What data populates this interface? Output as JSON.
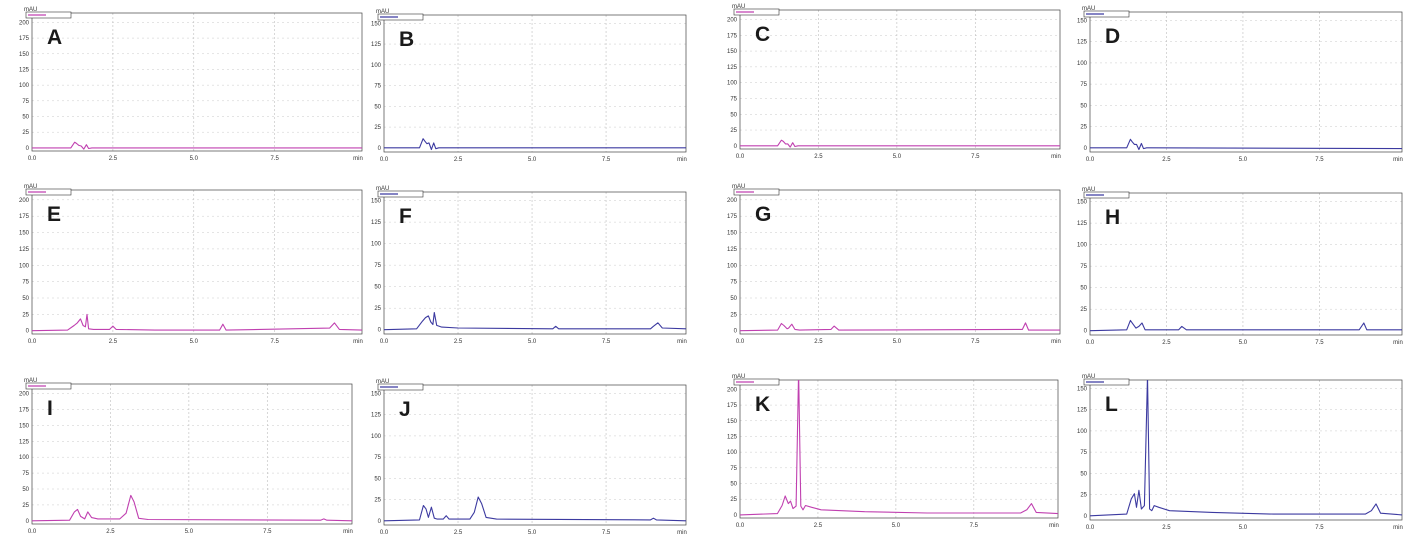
{
  "figure": {
    "background": "#ffffff",
    "grid_color": "#bdbdbd",
    "axis_color": "#444444"
  },
  "colors": {
    "magenta": "#c040b0",
    "blue": "#3c3aa0"
  },
  "chart_data": [
    {
      "id": "A",
      "type": "line",
      "color": "#c040b0",
      "ylabel": "mAU",
      "xlabel": "min",
      "xlim": [
        0,
        10.2
      ],
      "ylim": [
        -5,
        215
      ],
      "y_ticks": [
        0,
        25,
        50,
        75,
        100,
        125,
        150,
        175,
        200
      ],
      "x_ticks": [
        "2.5",
        "5.0",
        "7.5"
      ],
      "grid": true,
      "x": [
        0,
        1.2,
        1.32,
        1.38,
        1.45,
        1.52,
        1.6,
        1.68,
        1.75,
        1.85,
        2.0,
        10.2
      ],
      "y": [
        0,
        0,
        9,
        7,
        4,
        3,
        -2,
        5,
        -1,
        0,
        0,
        0
      ]
    },
    {
      "id": "B",
      "type": "line",
      "color": "#3c3aa0",
      "ylabel": "mAU",
      "xlabel": "min",
      "xlim": [
        0,
        10.2
      ],
      "ylim": [
        -5,
        160
      ],
      "y_ticks": [
        0,
        25,
        50,
        75,
        100,
        125,
        150
      ],
      "x_ticks": [
        "2.5",
        "5.0",
        "7.5"
      ],
      "grid": true,
      "x": [
        0,
        1.2,
        1.32,
        1.38,
        1.45,
        1.52,
        1.6,
        1.68,
        1.75,
        1.85,
        2.0,
        10.2
      ],
      "y": [
        0,
        0,
        11,
        8,
        5,
        6,
        -2,
        6,
        -1,
        0,
        0,
        0
      ]
    },
    {
      "id": "C",
      "type": "line",
      "color": "#c040b0",
      "ylabel": "mAU",
      "xlabel": "min",
      "xlim": [
        0,
        10.2
      ],
      "ylim": [
        -5,
        215
      ],
      "y_ticks": [
        0,
        25,
        50,
        75,
        100,
        125,
        150,
        175,
        200
      ],
      "x_ticks": [
        "2.5",
        "5.0",
        "7.5"
      ],
      "grid": true,
      "x": [
        0,
        1.2,
        1.32,
        1.38,
        1.45,
        1.52,
        1.6,
        1.68,
        1.75,
        1.85,
        2.0,
        10.2
      ],
      "y": [
        0,
        0,
        9,
        7,
        3,
        3,
        -2,
        5,
        -1,
        0,
        0,
        0
      ]
    },
    {
      "id": "D",
      "type": "line",
      "color": "#3c3aa0",
      "ylabel": "mAU",
      "xlabel": "min",
      "xlim": [
        0,
        10.2
      ],
      "ylim": [
        -5,
        160
      ],
      "y_ticks": [
        0,
        25,
        50,
        75,
        100,
        125,
        150
      ],
      "x_ticks": [
        "2.5",
        "5.0",
        "7.5"
      ],
      "grid": true,
      "x": [
        0,
        1.2,
        1.32,
        1.38,
        1.45,
        1.52,
        1.6,
        1.68,
        1.75,
        1.85,
        2.0,
        10.2
      ],
      "y": [
        0,
        0,
        10,
        7,
        4,
        4,
        -2,
        5,
        -1,
        0,
        0,
        -1
      ]
    },
    {
      "id": "E",
      "type": "line",
      "color": "#c040b0",
      "ylabel": "mAU",
      "xlabel": "min",
      "xlim": [
        0,
        10.2
      ],
      "ylim": [
        -5,
        215
      ],
      "y_ticks": [
        0,
        25,
        50,
        75,
        100,
        125,
        150,
        175,
        200
      ],
      "x_ticks": [
        "2.5",
        "5.0",
        "7.5"
      ],
      "grid": true,
      "x": [
        0,
        1.1,
        1.3,
        1.4,
        1.5,
        1.58,
        1.65,
        1.7,
        1.75,
        1.9,
        2.4,
        2.5,
        2.6,
        3.8,
        5.8,
        5.9,
        6.0,
        9.2,
        9.35,
        9.5,
        10.2
      ],
      "y": [
        0,
        1,
        8,
        12,
        18,
        8,
        6,
        25,
        3,
        2,
        2,
        7,
        2,
        1,
        1,
        10,
        1,
        4,
        12,
        2,
        1
      ]
    },
    {
      "id": "F",
      "type": "line",
      "color": "#3c3aa0",
      "ylabel": "mAU",
      "xlabel": "min",
      "xlim": [
        0,
        10.2
      ],
      "ylim": [
        -5,
        160
      ],
      "y_ticks": [
        0,
        25,
        50,
        75,
        100,
        125,
        150
      ],
      "x_ticks": [
        "2.5",
        "5.0",
        "7.5"
      ],
      "grid": true,
      "x": [
        0,
        1.1,
        1.3,
        1.4,
        1.5,
        1.58,
        1.65,
        1.7,
        1.78,
        1.95,
        2.5,
        5.7,
        5.8,
        5.9,
        9.0,
        9.1,
        9.25,
        9.4,
        10.2
      ],
      "y": [
        0,
        1,
        10,
        14,
        16,
        9,
        6,
        20,
        5,
        3,
        2,
        1,
        4,
        1,
        1,
        4,
        8,
        2,
        1
      ]
    },
    {
      "id": "G",
      "type": "line",
      "color": "#c040b0",
      "ylabel": "mAU",
      "xlabel": "min",
      "xlim": [
        0,
        10.2
      ],
      "ylim": [
        -5,
        215
      ],
      "y_ticks": [
        0,
        25,
        50,
        75,
        100,
        125,
        150,
        175,
        200
      ],
      "x_ticks": [
        "2.5",
        "5.0",
        "7.5"
      ],
      "grid": true,
      "x": [
        0,
        1.2,
        1.32,
        1.4,
        1.5,
        1.55,
        1.65,
        1.75,
        1.9,
        2.9,
        3.0,
        3.15,
        9.0,
        9.1,
        9.2,
        10.2
      ],
      "y": [
        0,
        1,
        11,
        8,
        3,
        4,
        10,
        2,
        1,
        2,
        7,
        1,
        2,
        12,
        1,
        1
      ]
    },
    {
      "id": "H",
      "type": "line",
      "color": "#3c3aa0",
      "ylabel": "mAU",
      "xlabel": "min",
      "xlim": [
        0,
        10.2
      ],
      "ylim": [
        -5,
        160
      ],
      "y_ticks": [
        0,
        25,
        50,
        75,
        100,
        125,
        150
      ],
      "x_ticks": [
        "2.5",
        "5.0",
        "7.5"
      ],
      "grid": true,
      "x": [
        0,
        1.2,
        1.32,
        1.4,
        1.5,
        1.6,
        1.7,
        1.8,
        2.0,
        2.9,
        3.0,
        3.15,
        8.8,
        8.95,
        9.05,
        10.2
      ],
      "y": [
        0,
        1,
        12,
        8,
        3,
        5,
        9,
        1,
        1,
        1,
        5,
        1,
        1,
        9,
        1,
        1
      ]
    },
    {
      "id": "I",
      "type": "line",
      "color": "#c040b0",
      "ylabel": "mAU",
      "xlabel": "min",
      "xlim": [
        0,
        10.2
      ],
      "ylim": [
        -5,
        215
      ],
      "y_ticks": [
        0,
        25,
        50,
        75,
        100,
        125,
        150,
        175,
        200
      ],
      "x_ticks": [
        "2.5",
        "5.0",
        "7.5"
      ],
      "grid": true,
      "x": [
        0,
        1.2,
        1.35,
        1.45,
        1.55,
        1.68,
        1.78,
        1.9,
        2.1,
        2.8,
        3.0,
        3.15,
        3.25,
        3.4,
        3.7,
        9.2,
        9.3,
        9.4,
        10.2
      ],
      "y": [
        0,
        1,
        14,
        18,
        7,
        3,
        14,
        5,
        3,
        3,
        12,
        40,
        30,
        4,
        2,
        1,
        3,
        1,
        0
      ]
    },
    {
      "id": "J",
      "type": "line",
      "color": "#3c3aa0",
      "ylabel": "mAU",
      "xlabel": "min",
      "xlim": [
        0,
        10.2
      ],
      "ylim": [
        -5,
        160
      ],
      "y_ticks": [
        0,
        25,
        50,
        75,
        100,
        125,
        150
      ],
      "x_ticks": [
        "2.5",
        "5.0",
        "7.5"
      ],
      "grid": true,
      "x": [
        0,
        1.2,
        1.33,
        1.42,
        1.5,
        1.6,
        1.7,
        1.8,
        2.0,
        2.1,
        2.2,
        2.9,
        3.05,
        3.18,
        3.3,
        3.45,
        3.8,
        9.0,
        9.1,
        9.2,
        10.2
      ],
      "y": [
        0,
        1,
        18,
        14,
        4,
        16,
        3,
        2,
        2,
        6,
        2,
        2,
        10,
        28,
        20,
        4,
        2,
        1,
        3,
        1,
        0
      ]
    },
    {
      "id": "K",
      "type": "line",
      "color": "#c040b0",
      "ylabel": "mAU",
      "xlabel": "min",
      "xlim": [
        0,
        10.2
      ],
      "ylim": [
        -5,
        215
      ],
      "y_ticks": [
        0,
        25,
        50,
        75,
        100,
        125,
        150,
        175,
        200
      ],
      "x_ticks": [
        "2.5",
        "5.0",
        "7.5"
      ],
      "grid": true,
      "x": [
        0,
        1.2,
        1.35,
        1.45,
        1.55,
        1.62,
        1.7,
        1.8,
        1.88,
        1.95,
        2.02,
        2.1,
        2.3,
        2.6,
        4.0,
        6.0,
        9.0,
        9.2,
        9.35,
        9.5,
        10.2
      ],
      "y": [
        0,
        2,
        15,
        30,
        18,
        22,
        10,
        14,
        230,
        14,
        8,
        15,
        12,
        8,
        5,
        3,
        3,
        8,
        18,
        4,
        2
      ]
    },
    {
      "id": "L",
      "type": "line",
      "color": "#3c3aa0",
      "ylabel": "mAU",
      "xlabel": "min",
      "xlim": [
        0,
        10.2
      ],
      "ylim": [
        -5,
        160
      ],
      "y_ticks": [
        0,
        25,
        50,
        75,
        100,
        125,
        150
      ],
      "x_ticks": [
        "2.5",
        "5.0",
        "7.5"
      ],
      "grid": true,
      "x": [
        0,
        1.2,
        1.35,
        1.45,
        1.52,
        1.6,
        1.68,
        1.78,
        1.88,
        1.95,
        2.02,
        2.1,
        2.25,
        2.6,
        4.0,
        6.0,
        9.0,
        9.2,
        9.35,
        9.5,
        10.2
      ],
      "y": [
        0,
        2,
        20,
        26,
        10,
        30,
        8,
        12,
        165,
        8,
        6,
        12,
        10,
        6,
        4,
        2,
        2,
        6,
        14,
        3,
        1
      ]
    }
  ]
}
